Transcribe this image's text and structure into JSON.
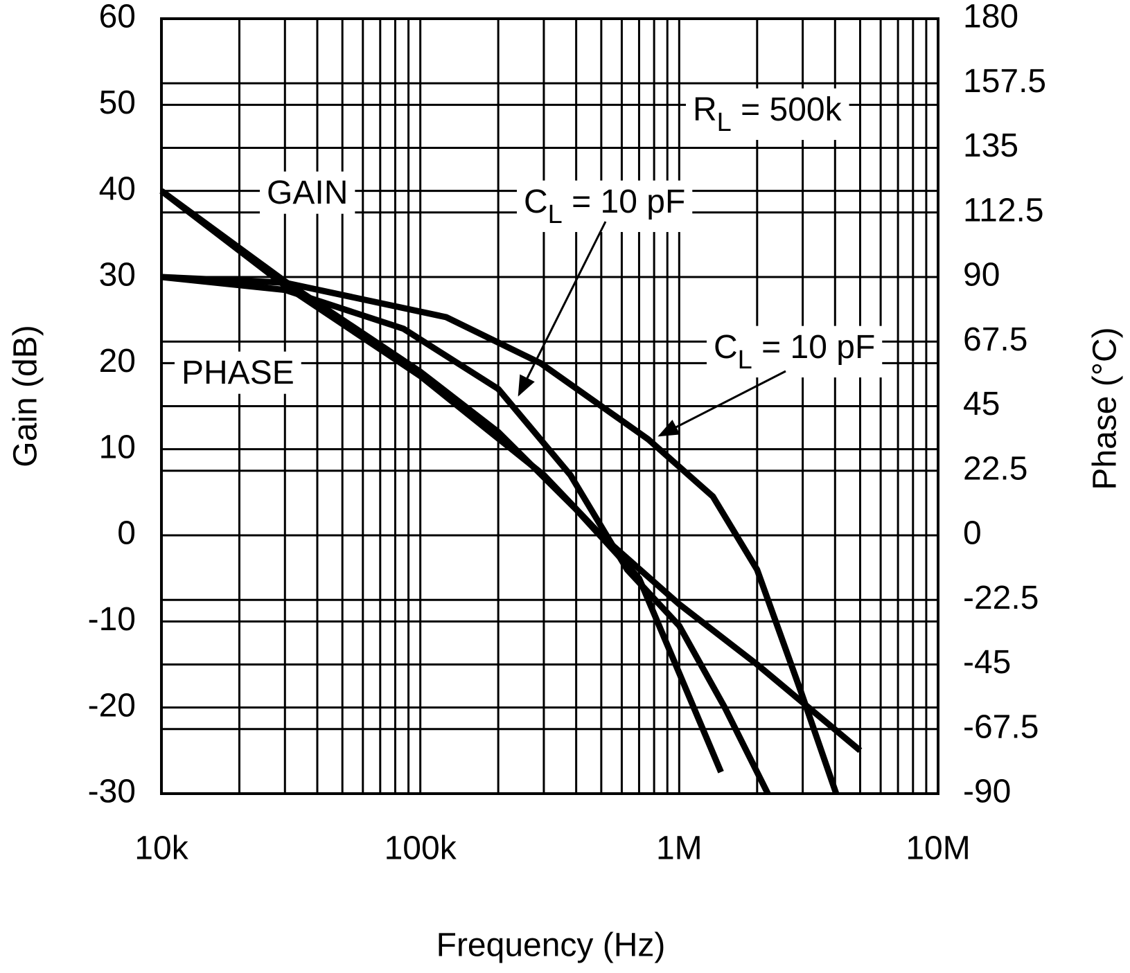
{
  "chart_data": {
    "type": "line",
    "xlabel": "Frequency (Hz)",
    "ylabel": "Gain (dB)",
    "y2label": "Phase (°C)",
    "xscale": "log",
    "grid": true,
    "xlim": [
      10000,
      10000000
    ],
    "xticks": [
      {
        "value": 10000,
        "label": "10k"
      },
      {
        "value": 100000,
        "label": "100k"
      },
      {
        "value": 1000000,
        "label": "1M"
      },
      {
        "value": 10000000,
        "label": "10M"
      }
    ],
    "ylim": [
      -30,
      60
    ],
    "yticks": [
      -30,
      -20,
      -10,
      0,
      10,
      20,
      30,
      40,
      50,
      60
    ],
    "y2lim": [
      -90,
      180
    ],
    "y2ticks": [
      -90,
      -67.5,
      -45,
      -22.5,
      0,
      22.5,
      45,
      67.5,
      90,
      112.5,
      135,
      157.5,
      180
    ],
    "series": [
      {
        "color": "#000000",
        "x": [
          10000,
          30000,
          100000,
          300000,
          500000,
          1000000,
          2000000,
          5000000
        ],
        "values": [
          40,
          29,
          18.5,
          7,
          0,
          -8,
          -15,
          -25
        ]
      },
      {
        "color": "#000000",
        "x": [
          10000,
          30000,
          100000,
          200000,
          400000,
          700000,
          1000000,
          1450000
        ],
        "values": [
          40,
          29.5,
          19,
          12,
          3,
          -5,
          -16,
          -27.5
        ]
      },
      {
        "color": "#000000",
        "axis": "y2",
        "x": [
          10000,
          30000,
          86000,
          200000,
          380000,
          630000,
          1000000,
          1500000,
          2200000
        ],
        "values": [
          90,
          85.5,
          72,
          51,
          21,
          -12,
          -31.5,
          -60,
          -90
        ]
      },
      {
        "color": "#000000",
        "axis": "y2",
        "x": [
          10000,
          30000,
          126000,
          291000,
          758000,
          1350000,
          2000000,
          2940000,
          4040000
        ],
        "values": [
          90,
          88,
          76,
          60,
          33.5,
          13.5,
          -12,
          -54,
          -90
        ]
      }
    ],
    "annotations": [
      {
        "parts": [
          "GAIN"
        ]
      },
      {
        "parts": [
          "PHASE"
        ]
      },
      {
        "parts": [
          "C",
          "L",
          " = 10 pF"
        ]
      },
      {
        "parts": [
          "C",
          "L",
          " = 10 pF"
        ]
      },
      {
        "parts": [
          "R",
          "L",
          " = 500k"
        ]
      }
    ]
  }
}
